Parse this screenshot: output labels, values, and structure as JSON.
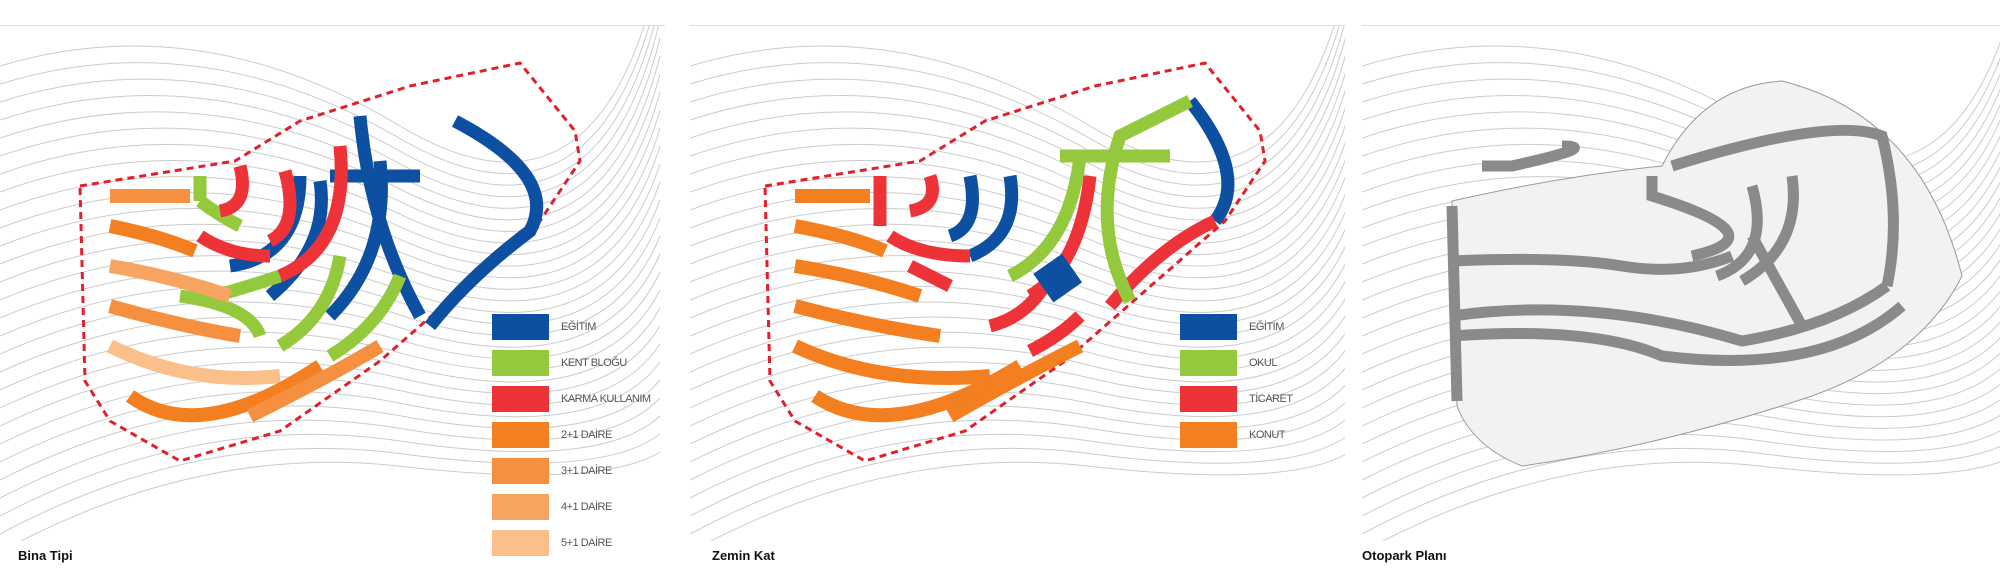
{
  "panels": [
    {
      "caption": "Bina Tipi",
      "legend": [
        {
          "label": "EĞİTİM",
          "color": "#0d4fa0"
        },
        {
          "label": "KENT BLOĞU",
          "color": "#95c93d"
        },
        {
          "label": "KARMA KULLANIM",
          "color": "#ee3338"
        },
        {
          "label": "2+1 DAİRE",
          "color": "#f47f20"
        },
        {
          "label": "3+1 DAİRE",
          "color": "#f59040"
        },
        {
          "label": "4+1 DAİRE",
          "color": "#f7a460"
        },
        {
          "label": "5+1 DAİRE",
          "color": "#fbbf8a"
        }
      ]
    },
    {
      "caption": "Zemin Kat",
      "legend": [
        {
          "label": "EĞİTİM",
          "color": "#0d4fa0"
        },
        {
          "label": "OKUL",
          "color": "#95c93d"
        },
        {
          "label": "TİCARET",
          "color": "#ee3338"
        },
        {
          "label": "KONUT",
          "color": "#f47f20"
        }
      ]
    },
    {
      "caption": "Otopark Planı"
    }
  ],
  "colors": {
    "boundary": "#e0202a",
    "contour": "#c8c8c8",
    "parking": "#8a8a8a"
  }
}
